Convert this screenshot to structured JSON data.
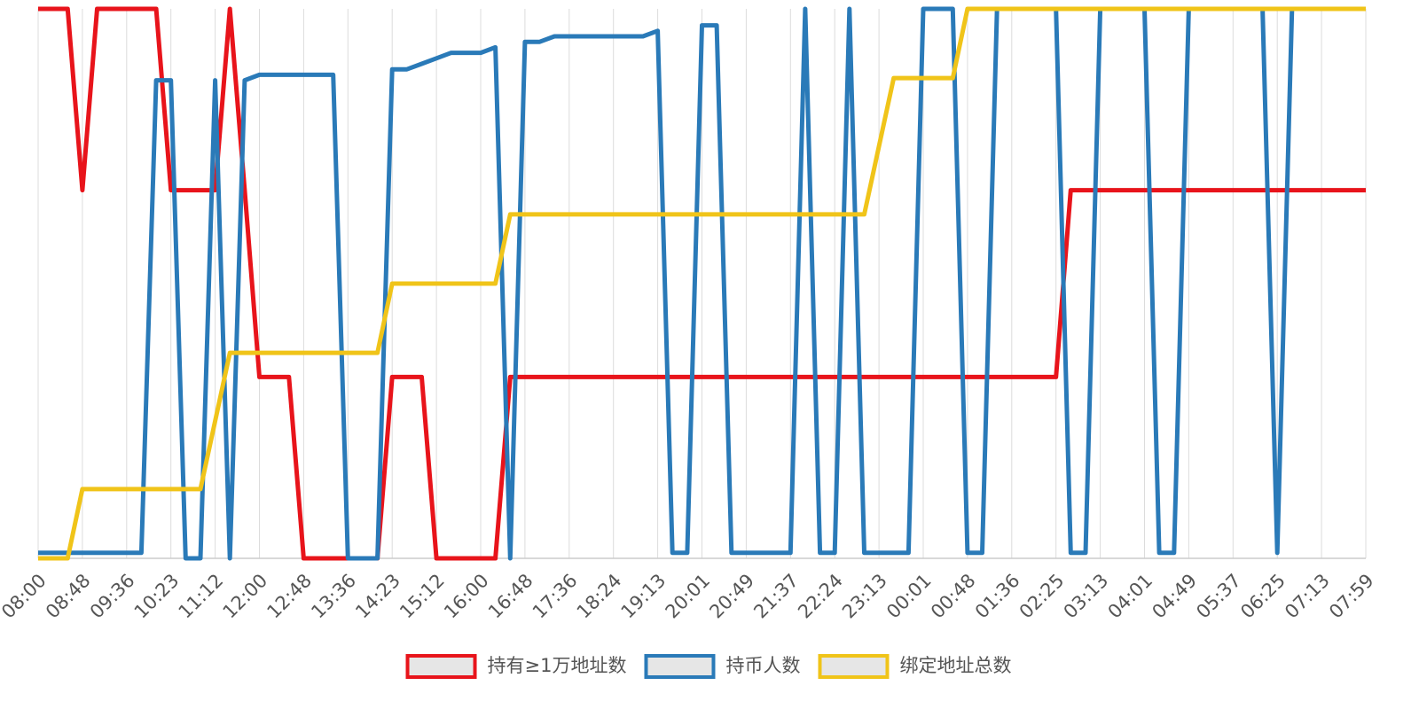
{
  "chart_data": {
    "type": "line",
    "categories": [
      "08:00",
      null,
      null,
      "08:48",
      null,
      null,
      "09:36",
      null,
      null,
      "10:23",
      null,
      null,
      "11:12",
      null,
      null,
      "12:00",
      null,
      null,
      "12:48",
      null,
      null,
      "13:36",
      null,
      null,
      "14:23",
      null,
      null,
      "15:12",
      null,
      null,
      "16:00",
      null,
      null,
      "16:48",
      null,
      null,
      "17:36",
      null,
      null,
      "18:24",
      null,
      null,
      "19:13",
      null,
      null,
      "20:01",
      null,
      null,
      "20:49",
      null,
      null,
      "21:37",
      null,
      null,
      "22:24",
      null,
      null,
      "23:13",
      null,
      null,
      "00:01",
      null,
      null,
      "00:48",
      null,
      null,
      "01:36",
      null,
      null,
      "02:25",
      null,
      null,
      "03:13",
      null,
      null,
      "04:01",
      null,
      null,
      "04:49",
      null,
      null,
      "05:37",
      null,
      null,
      "06:25",
      null,
      null,
      "07:13",
      null,
      null,
      "07:59"
    ],
    "series": [
      {
        "name": "持有≥1万地址数",
        "color": "#e8141b",
        "values": [
          100,
          100,
          100,
          67,
          100,
          100,
          100,
          100,
          100,
          67,
          67,
          67,
          67,
          100,
          67,
          33,
          33,
          33,
          0,
          0,
          0,
          0,
          0,
          0,
          33,
          33,
          33,
          0,
          0,
          0,
          0,
          0,
          33,
          33,
          33,
          33,
          33,
          33,
          33,
          33,
          33,
          33,
          33,
          33,
          33,
          33,
          33,
          33,
          33,
          33,
          33,
          33,
          33,
          33,
          33,
          33,
          33,
          33,
          33,
          33,
          33,
          33,
          33,
          33,
          33,
          33,
          33,
          33,
          33,
          33,
          67,
          67,
          67,
          67,
          67,
          67,
          67,
          67,
          67,
          67,
          67,
          67,
          67,
          67,
          67,
          67,
          67,
          67,
          67,
          67,
          67
        ]
      },
      {
        "name": "持币人数",
        "color": "#2a7ab8",
        "values": [
          1,
          1,
          1,
          1,
          1,
          1,
          1,
          1,
          87,
          87,
          0,
          0,
          87,
          0,
          87,
          88,
          88,
          88,
          88,
          88,
          88,
          0,
          0,
          0,
          89,
          89,
          90,
          91,
          92,
          92,
          92,
          93,
          0,
          94,
          94,
          95,
          95,
          95,
          95,
          95,
          95,
          95,
          96,
          1,
          1,
          97,
          97,
          1,
          1,
          1,
          1,
          1,
          100,
          1,
          1,
          100,
          1,
          1,
          1,
          1,
          100,
          100,
          100,
          1,
          1,
          100,
          100,
          100,
          100,
          100,
          1,
          1,
          100,
          100,
          100,
          100,
          1,
          1,
          100,
          100,
          100,
          100,
          100,
          100,
          1,
          100,
          100,
          100,
          100,
          100,
          100
        ]
      },
      {
        "name": "绑定地址总数",
        "color": "#f0c419",
        "values": [
          0,
          0,
          0,
          12.6,
          12.6,
          12.6,
          12.6,
          12.6,
          12.6,
          12.6,
          12.6,
          12.6,
          25,
          37.4,
          37.4,
          37.4,
          37.4,
          37.4,
          37.4,
          37.4,
          37.4,
          37.4,
          37.4,
          37.4,
          50,
          50,
          50,
          50,
          50,
          50,
          50,
          50,
          62.6,
          62.6,
          62.6,
          62.6,
          62.6,
          62.6,
          62.6,
          62.6,
          62.6,
          62.6,
          62.6,
          62.6,
          62.6,
          62.6,
          62.6,
          62.6,
          62.6,
          62.6,
          62.6,
          62.6,
          62.6,
          62.6,
          62.6,
          62.6,
          62.6,
          75,
          87.4,
          87.4,
          87.4,
          87.4,
          87.4,
          100,
          100,
          100,
          100,
          100,
          100,
          100,
          100,
          100,
          100,
          100,
          100,
          100,
          100,
          100,
          100,
          100,
          100,
          100,
          100,
          100,
          100,
          100,
          100,
          100,
          100,
          100,
          100
        ]
      }
    ],
    "ylim": [
      0,
      100
    ],
    "grid": true,
    "legend": "bottom"
  }
}
